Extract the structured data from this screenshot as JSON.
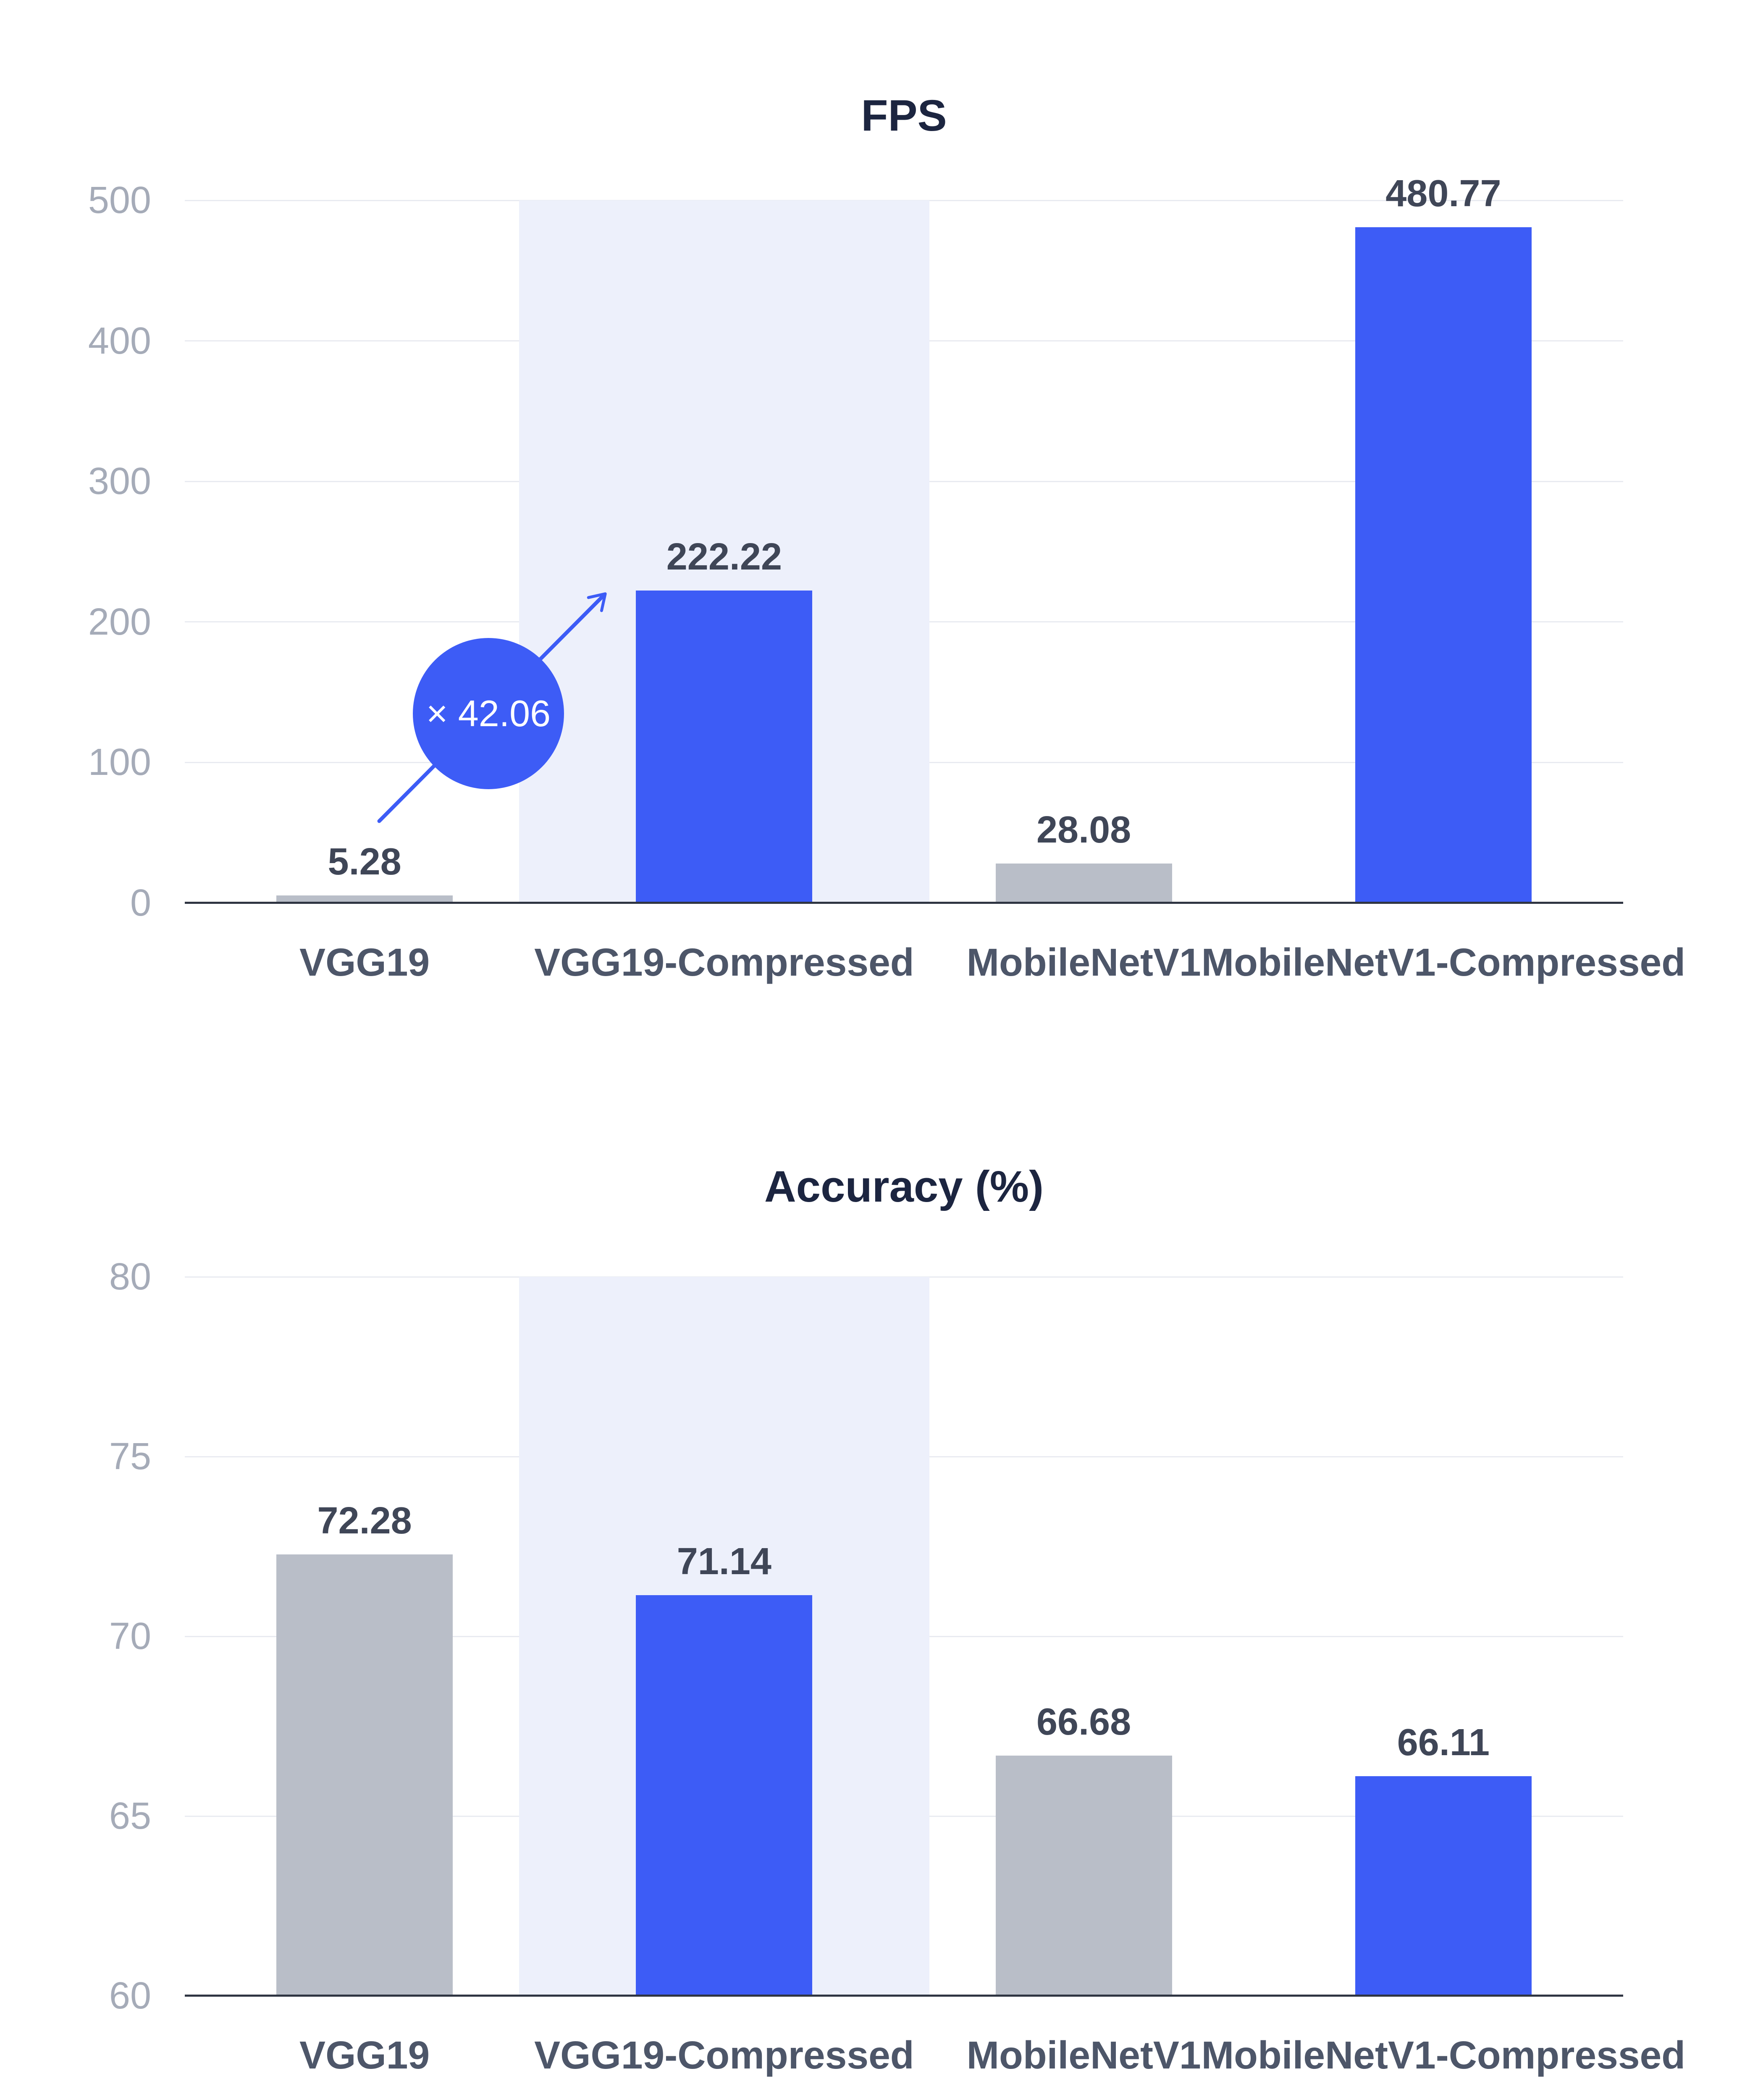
{
  "page": {
    "background": "#FFFFFF"
  },
  "colors": {
    "blue": "#3D5CF6",
    "gray": "#B9BEC8",
    "highlight_band": "#EDF0FB",
    "gridline": "#E9EBF1",
    "axis_line": "#2F3542",
    "tick_text": "#A5ABB8",
    "category_text": "#4D5669",
    "value_text": "#3F4657",
    "title_text": "#1C2540",
    "annotation_bg": "#3D5CF6",
    "annotation_text": "#FFFFFF"
  },
  "chart_data": [
    {
      "type": "bar",
      "title": "FPS",
      "categories": [
        "VGG19",
        "VGG19-Compressed",
        "MobileNetV1",
        "MobileNetV1-Compressed"
      ],
      "values": [
        5.28,
        222.22,
        28.08,
        480.77
      ],
      "value_labels": [
        "5.28",
        "222.22",
        "28.08",
        "480.77"
      ],
      "bar_colors": [
        "gray",
        "blue",
        "gray",
        "blue"
      ],
      "ylim": [
        0,
        500
      ],
      "yticks": [
        0,
        100,
        200,
        300,
        400,
        500
      ],
      "grid": true,
      "legend": "none",
      "highlight_category_index": 1,
      "annotation": {
        "label": "× 42.06"
      }
    },
    {
      "type": "bar",
      "title": "Accuracy (%)",
      "categories": [
        "VGG19",
        "VGG19-Compressed",
        "MobileNetV1",
        "MobileNetV1-Compressed"
      ],
      "values": [
        72.28,
        71.14,
        66.68,
        66.11
      ],
      "value_labels": [
        "72.28",
        "71.14",
        "66.68",
        "66.11"
      ],
      "bar_colors": [
        "gray",
        "blue",
        "gray",
        "blue"
      ],
      "ylim": [
        60,
        80
      ],
      "yticks": [
        60,
        65,
        70,
        75,
        80
      ],
      "grid": true,
      "legend": "none",
      "highlight_category_index": 1
    }
  ]
}
